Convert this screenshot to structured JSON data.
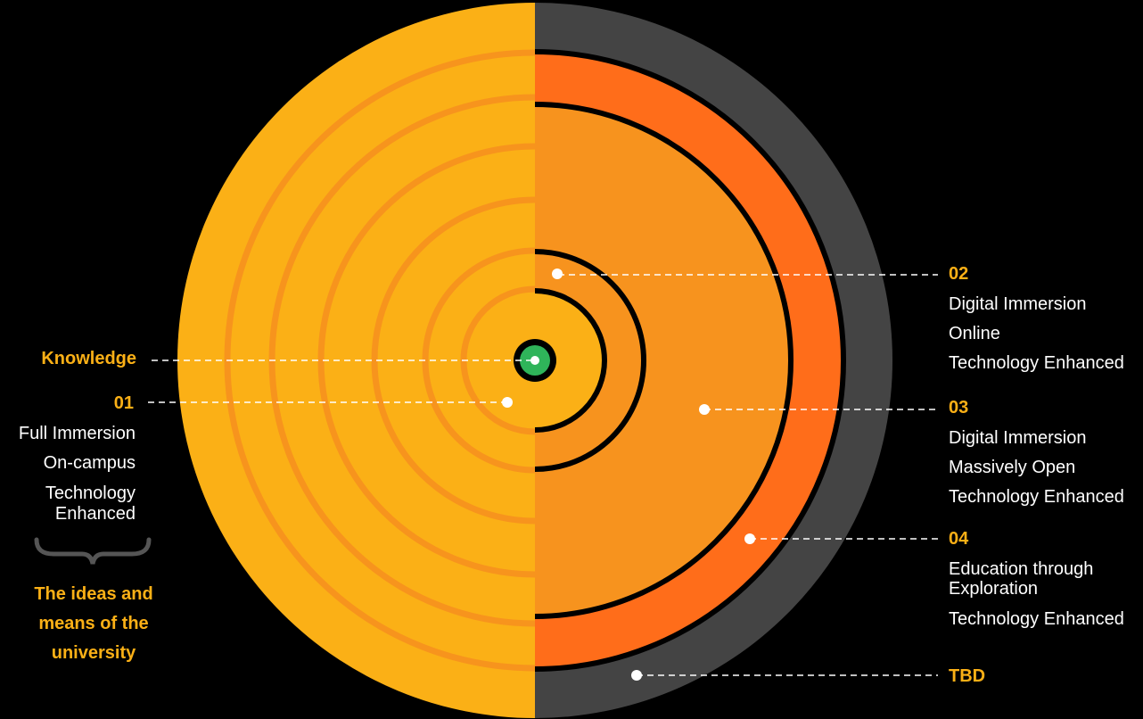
{
  "colors": {
    "background": "#000000",
    "gold": "#fbb016",
    "ring_stroke_left": "#f7941d",
    "orange_fill": "#f7931e",
    "outer_orange": "#ff6d1a",
    "gray_ring": "#444444",
    "core_green": "#2fb45a"
  },
  "knowledge": {
    "label": "Knowledge"
  },
  "zone01": {
    "number": "01",
    "lines": [
      "Full Immersion",
      "On-campus",
      "Technology",
      "Enhanced"
    ]
  },
  "caption": {
    "lines": [
      "The ideas and",
      "means of the",
      "university"
    ]
  },
  "zone02": {
    "number": "02",
    "lines": [
      "Digital Immersion",
      "Online",
      "Technology Enhanced"
    ]
  },
  "zone03": {
    "number": "03",
    "lines": [
      "Digital Immersion",
      "Massively Open",
      "Technology Enhanced"
    ]
  },
  "zone04": {
    "number": "04",
    "lines": [
      "Education through",
      "Exploration",
      "Technology Enhanced"
    ]
  },
  "tbd": {
    "label": "TBD"
  }
}
